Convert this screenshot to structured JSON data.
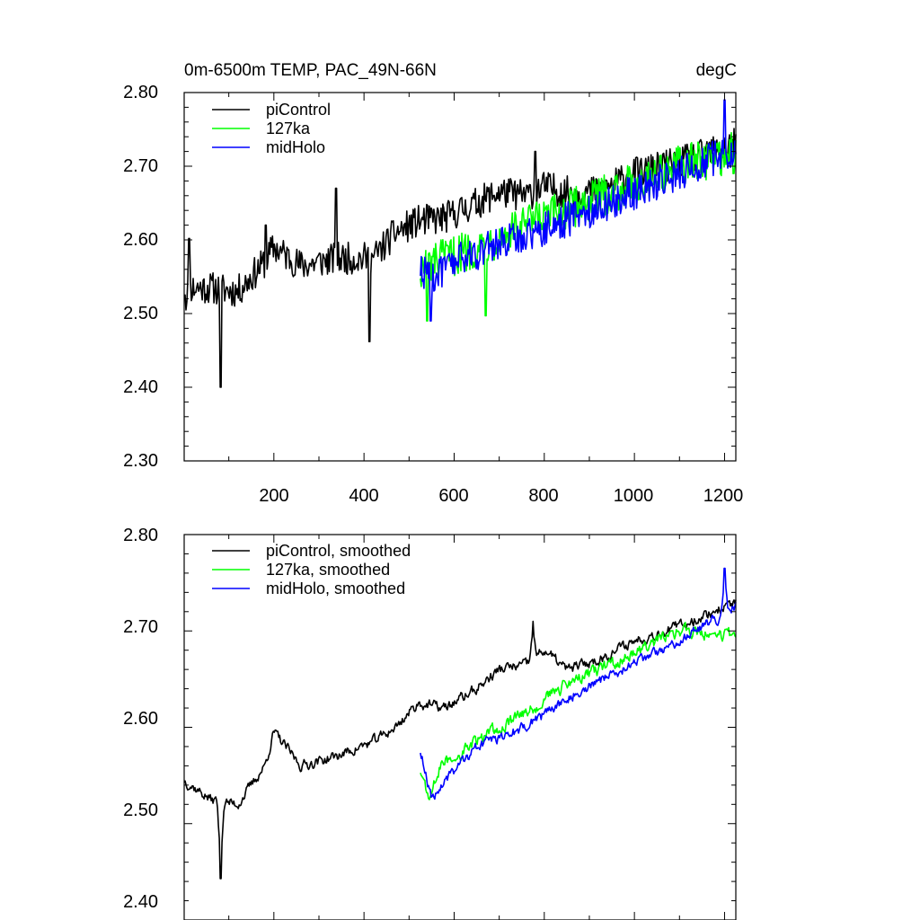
{
  "colors": {
    "piControl": "#000000",
    "127ka": "#00ff00",
    "midHolo": "#0000ff",
    "axis": "#000000",
    "background": "#ffffff"
  },
  "chart_data": [
    {
      "type": "line",
      "title_left": "0m-6500m TEMP, PAC_49N-66N",
      "title_right": "degC",
      "xlabel": "",
      "ylabel": "",
      "xlim": [
        1,
        1225
      ],
      "ylim": [
        2.3,
        2.8
      ],
      "x_ticks": [
        200,
        400,
        600,
        800,
        1000,
        1200
      ],
      "x_tick_labels": [
        "200",
        "400",
        "600",
        "800",
        "1000",
        "1200"
      ],
      "y_ticks": [
        2.3,
        2.4,
        2.5,
        2.6,
        2.7,
        2.8
      ],
      "y_tick_labels": [
        "2.30",
        "2.40",
        "2.50",
        "2.60",
        "2.70",
        "2.80"
      ],
      "grid": false,
      "legend_position": "top-left",
      "series": [
        {
          "name": "piControl",
          "x_range": [
            1,
            1225
          ],
          "anchors": [
            [
              1,
              2.535
            ],
            [
              60,
              2.535
            ],
            [
              120,
              2.53
            ],
            [
              180,
              2.57
            ],
            [
              200,
              2.59
            ],
            [
              260,
              2.565
            ],
            [
              340,
              2.575
            ],
            [
              420,
              2.575
            ],
            [
              470,
              2.61
            ],
            [
              520,
              2.625
            ],
            [
              580,
              2.63
            ],
            [
              650,
              2.65
            ],
            [
              700,
              2.665
            ],
            [
              760,
              2.66
            ],
            [
              800,
              2.672
            ],
            [
              850,
              2.665
            ],
            [
              920,
              2.665
            ],
            [
              1000,
              2.69
            ],
            [
              1100,
              2.705
            ],
            [
              1225,
              2.73
            ]
          ],
          "noise_amplitude": 0.022,
          "notable_values": [
            {
              "x": 5,
              "y": 2.505
            },
            {
              "x": 12,
              "y": 2.602
            },
            {
              "x": 82,
              "y": 2.4
            },
            {
              "x": 182,
              "y": 2.62
            },
            {
              "x": 338,
              "y": 2.67
            },
            {
              "x": 412,
              "y": 2.462
            },
            {
              "x": 780,
              "y": 2.72
            }
          ]
        },
        {
          "name": "127ka",
          "x_range": [
            525,
            1225
          ],
          "anchors": [
            [
              525,
              2.56
            ],
            [
              560,
              2.57
            ],
            [
              650,
              2.59
            ],
            [
              760,
              2.62
            ],
            [
              850,
              2.64
            ],
            [
              950,
              2.665
            ],
            [
              1100,
              2.7
            ],
            [
              1225,
              2.72
            ]
          ],
          "noise_amplitude": 0.028,
          "notable_values": [
            {
              "x": 540,
              "y": 2.49
            },
            {
              "x": 670,
              "y": 2.497
            },
            {
              "x": 1220,
              "y": 2.69
            }
          ]
        },
        {
          "name": "midHolo",
          "x_range": [
            525,
            1225
          ],
          "anchors": [
            [
              525,
              2.56
            ],
            [
              560,
              2.55
            ],
            [
              600,
              2.57
            ],
            [
              700,
              2.595
            ],
            [
              800,
              2.615
            ],
            [
              900,
              2.64
            ],
            [
              1000,
              2.665
            ],
            [
              1100,
              2.69
            ],
            [
              1225,
              2.725
            ]
          ],
          "noise_amplitude": 0.024,
          "notable_values": [
            {
              "x": 548,
              "y": 2.49
            },
            {
              "x": 1200,
              "y": 2.79
            }
          ]
        }
      ],
      "legend": [
        "piControl",
        "127ka",
        "midHolo"
      ]
    },
    {
      "type": "line",
      "title_left": "",
      "title_right": "",
      "xlabel": "",
      "ylabel": "",
      "xlim": [
        1,
        1225
      ],
      "ylim": [
        2.4,
        2.8
      ],
      "x_ticks": [
        200,
        400,
        600,
        800,
        1000,
        1200
      ],
      "x_tick_labels": [],
      "y_ticks": [
        2.4,
        2.5,
        2.6,
        2.7,
        2.8
      ],
      "y_tick_labels": [
        "2.40",
        "2.50",
        "2.60",
        "2.70",
        "2.80"
      ],
      "grid": false,
      "legend_position": "top-left",
      "series": [
        {
          "name": "piControl, smoothed",
          "x_range": [
            1,
            1225
          ],
          "anchors": [
            [
              1,
              2.545
            ],
            [
              60,
              2.525
            ],
            [
              120,
              2.52
            ],
            [
              180,
              2.56
            ],
            [
              200,
              2.595
            ],
            [
              260,
              2.56
            ],
            [
              340,
              2.57
            ],
            [
              420,
              2.585
            ],
            [
              470,
              2.6
            ],
            [
              520,
              2.625
            ],
            [
              580,
              2.62
            ],
            [
              650,
              2.64
            ],
            [
              700,
              2.66
            ],
            [
              760,
              2.665
            ],
            [
              800,
              2.68
            ],
            [
              850,
              2.66
            ],
            [
              920,
              2.67
            ],
            [
              1000,
              2.69
            ],
            [
              1100,
              2.705
            ],
            [
              1225,
              2.73
            ]
          ],
          "noise_amplitude": 0.01,
          "notable_values": [
            {
              "x": 82,
              "y": 2.443
            },
            {
              "x": 775,
              "y": 2.71
            }
          ]
        },
        {
          "name": "127ka, smoothed",
          "x_range": [
            525,
            1225
          ],
          "anchors": [
            [
              525,
              2.555
            ],
            [
              545,
              2.525
            ],
            [
              570,
              2.56
            ],
            [
              650,
              2.585
            ],
            [
              760,
              2.615
            ],
            [
              850,
              2.645
            ],
            [
              950,
              2.665
            ],
            [
              1100,
              2.7
            ],
            [
              1225,
              2.695
            ]
          ],
          "noise_amplitude": 0.012
        },
        {
          "name": "midHolo, smoothed",
          "x_range": [
            525,
            1225
          ],
          "anchors": [
            [
              525,
              2.575
            ],
            [
              550,
              2.525
            ],
            [
              580,
              2.545
            ],
            [
              650,
              2.58
            ],
            [
              760,
              2.6
            ],
            [
              850,
              2.63
            ],
            [
              950,
              2.655
            ],
            [
              1100,
              2.69
            ],
            [
              1225,
              2.725
            ]
          ],
          "noise_amplitude": 0.01,
          "notable_values": [
            {
              "x": 1200,
              "y": 2.765
            }
          ]
        }
      ],
      "legend": [
        "piControl, smoothed",
        "127ka, smoothed",
        "midHolo, smoothed"
      ]
    }
  ]
}
